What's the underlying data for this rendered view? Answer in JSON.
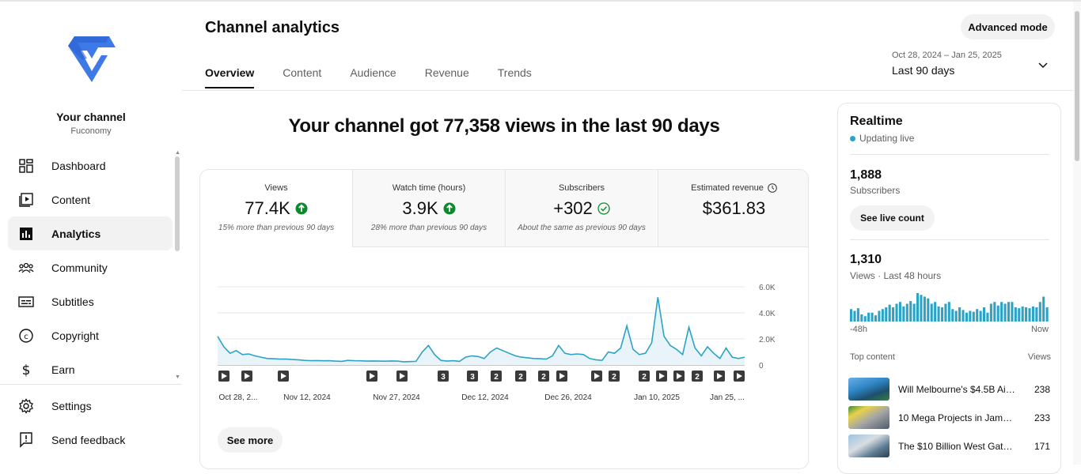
{
  "sidebar": {
    "channel_name": "Your channel",
    "channel_handle": "Fuconomy",
    "items": [
      {
        "label": "Dashboard",
        "icon": "dashboard-icon"
      },
      {
        "label": "Content",
        "icon": "content-icon"
      },
      {
        "label": "Analytics",
        "icon": "analytics-icon",
        "active": true
      },
      {
        "label": "Community",
        "icon": "community-icon"
      },
      {
        "label": "Subtitles",
        "icon": "subtitles-icon"
      },
      {
        "label": "Copyright",
        "icon": "copyright-icon"
      },
      {
        "label": "Earn",
        "icon": "earn-icon"
      }
    ],
    "bottom_items": [
      {
        "label": "Settings",
        "icon": "gear-icon"
      },
      {
        "label": "Send feedback",
        "icon": "feedback-icon"
      }
    ]
  },
  "header": {
    "title": "Channel analytics",
    "tabs": [
      "Overview",
      "Content",
      "Audience",
      "Revenue",
      "Trends"
    ],
    "advanced_mode": "Advanced mode",
    "date_range": "Oct 28, 2024 – Jan 25, 2025",
    "date_label": "Last 90 days"
  },
  "headline": "Your channel got 77,358 views in the last 90 days",
  "metrics": [
    {
      "label": "Views",
      "value": "77.4K",
      "sub": "15% more than previous 90 days",
      "icon": "arrow-up-circle-icon"
    },
    {
      "label": "Watch time (hours)",
      "value": "3.9K",
      "sub": "28% more than previous 90 days",
      "icon": "arrow-up-circle-icon"
    },
    {
      "label": "Subscribers",
      "value": "+302",
      "sub": "About the same as previous 90 days",
      "icon": "check-circle-icon"
    },
    {
      "label": "Estimated revenue",
      "value": "$361.83",
      "sub": "",
      "icon": "clock-icon"
    }
  ],
  "chart_data": {
    "type": "area",
    "series": [
      {
        "values": [
          2200,
          1400,
          900,
          1100,
          800,
          850,
          700,
          600,
          500,
          480,
          450,
          460,
          420,
          400,
          350,
          330,
          340,
          320,
          330,
          300,
          280,
          350,
          330,
          320,
          300,
          310,
          300,
          290,
          310,
          300,
          250,
          260,
          280,
          1000,
          1500,
          800,
          350,
          300,
          330,
          280,
          600,
          700,
          650,
          500,
          1000,
          1300,
          1100,
          900,
          700,
          600,
          550,
          500,
          480,
          450,
          700,
          1500,
          900,
          800,
          850,
          800,
          500,
          400,
          350,
          1000,
          900,
          1300,
          3000,
          1200,
          800,
          900,
          1700,
          5200,
          2200,
          1500,
          1200,
          800,
          2900,
          1300,
          700,
          1400,
          900,
          500,
          1300,
          600,
          500,
          600
        ]
      }
    ],
    "x_ticks": [
      "Oct 28, 2...",
      "Nov 12, 2024",
      "Nov 27, 2024",
      "Dec 12, 2024",
      "Dec 26, 2024",
      "Jan 10, 2025",
      "Jan 25, ..."
    ],
    "y_ticks": [
      "6.0K",
      "4.0K",
      "2.0K",
      "0"
    ],
    "ylim": [
      0,
      6000
    ],
    "grid": true
  },
  "markers": [
    {
      "label": ""
    },
    {
      "label": ""
    },
    {
      "label": ""
    },
    {
      "label": ""
    },
    {
      "label": ""
    },
    {
      "label": "3"
    },
    {
      "label": "3"
    },
    {
      "label": "2"
    },
    {
      "label": "2"
    },
    {
      "label": "2"
    },
    {
      "label": ""
    },
    {
      "label": ""
    },
    {
      "label": "2"
    },
    {
      "label": "2"
    },
    {
      "label": ""
    },
    {
      "label": ""
    },
    {
      "label": "2"
    },
    {
      "label": ""
    },
    {
      "label": ""
    }
  ],
  "see_more": "See more",
  "realtime": {
    "title": "Realtime",
    "status": "Updating live",
    "subscribers": "1,888",
    "subscribers_label": "Subscribers",
    "live_count_btn": "See live count",
    "views": "1,310",
    "views_label": "Views · Last 48 hours",
    "bar_values": [
      14,
      12,
      15,
      8,
      6,
      10,
      10,
      7,
      12,
      14,
      16,
      19,
      16,
      20,
      22,
      17,
      20,
      23,
      20,
      32,
      30,
      28,
      26,
      20,
      22,
      17,
      16,
      20,
      22,
      14,
      12,
      16,
      13,
      10,
      12,
      11,
      14,
      12,
      16,
      10,
      20,
      22,
      18,
      22,
      20,
      22,
      22,
      16,
      15,
      17,
      16,
      15,
      17,
      16,
      22,
      28,
      16
    ],
    "x_start": "-48h",
    "x_end": "Now",
    "top_content_label": "Top content",
    "views_col_label": "Views",
    "top_content": [
      {
        "title": "Will Melbourne's $4.5B Airp...",
        "views": "238"
      },
      {
        "title": "10 Mega Projects in Jamai...",
        "views": "233"
      },
      {
        "title": "The $10 Billion West Gate ...",
        "views": "171"
      }
    ]
  }
}
